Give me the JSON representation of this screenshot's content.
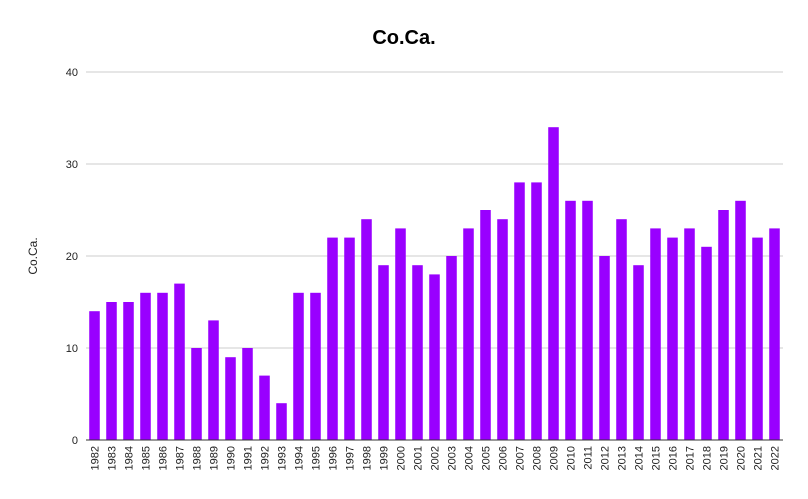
{
  "chart_data": {
    "type": "bar",
    "title": "Co.Ca.",
    "xlabel": "",
    "ylabel": "Co.Ca.",
    "ylim": [
      0,
      40
    ],
    "yticks": [
      0,
      10,
      20,
      30,
      40
    ],
    "grid": true,
    "legend": "none",
    "bar_color": "#9900ff",
    "categories": [
      "1982",
      "1983",
      "1984",
      "1985",
      "1986",
      "1987",
      "1988",
      "1989",
      "1990",
      "1991",
      "1992",
      "1993",
      "1994",
      "1995",
      "1996",
      "1997",
      "1998",
      "1999",
      "2000",
      "2001",
      "2002",
      "2003",
      "2004",
      "2005",
      "2006",
      "2007",
      "2008",
      "2009",
      "2010",
      "2011",
      "2012",
      "2013",
      "2014",
      "2015",
      "2016",
      "2017",
      "2018",
      "2019",
      "2020",
      "2021",
      "2022"
    ],
    "values": [
      14,
      15,
      15,
      16,
      16,
      17,
      10,
      13,
      9,
      10,
      7,
      4,
      16,
      16,
      22,
      22,
      24,
      19,
      23,
      19,
      18,
      20,
      23,
      25,
      24,
      28,
      28,
      34,
      26,
      26,
      20,
      24,
      19,
      23,
      22,
      23,
      21,
      25,
      26,
      22,
      23
    ]
  }
}
